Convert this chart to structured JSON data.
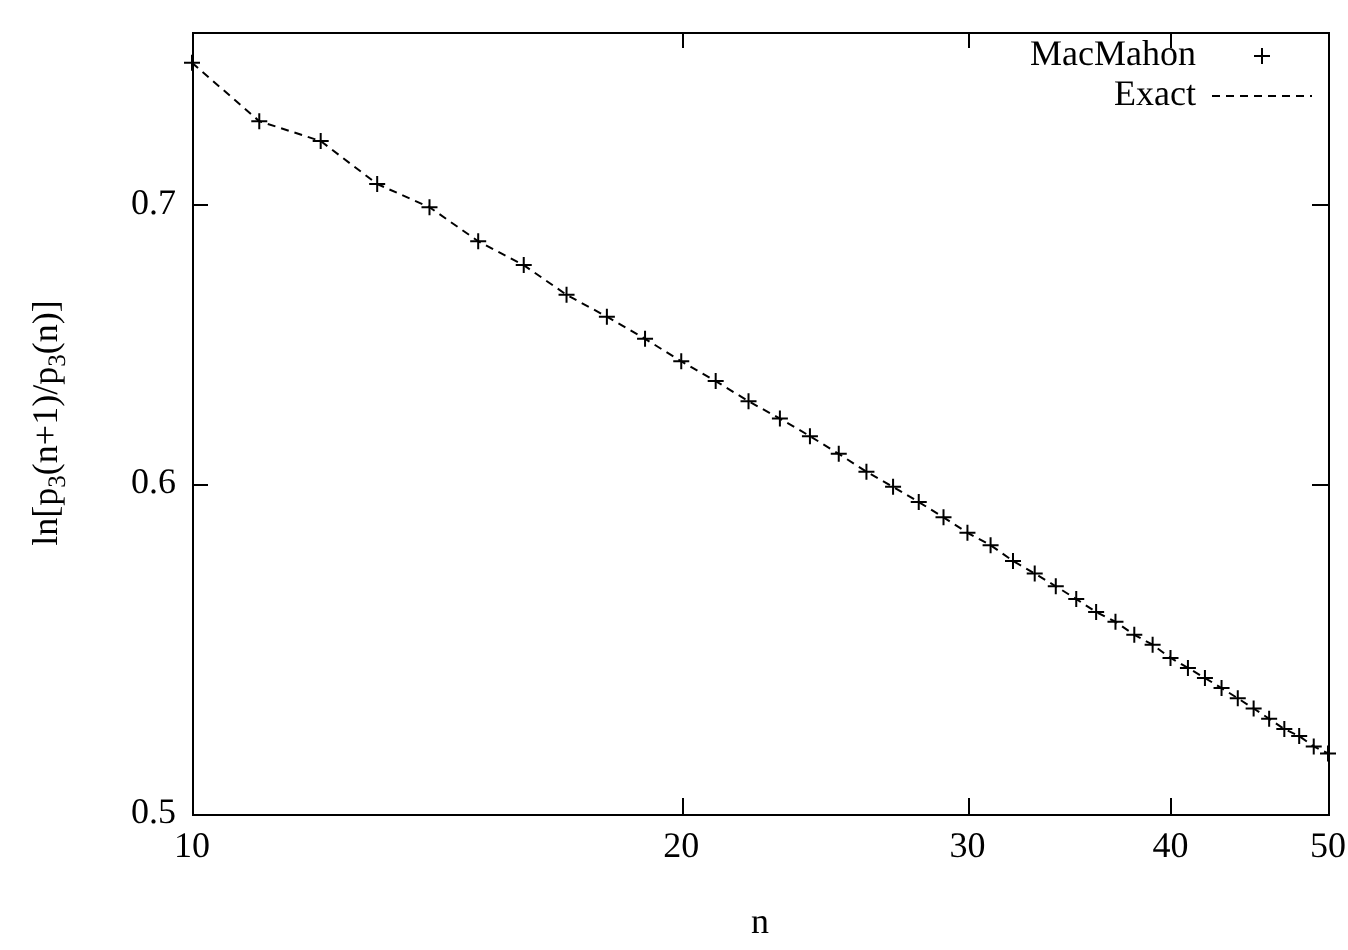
{
  "chart_data": {
    "type": "line",
    "xlabel": "n",
    "ylabel": "ln[p$_{3}$(n+1)/p$_{3}$(n)]",
    "log": "xy",
    "legend": "top right",
    "grid": false,
    "x": [
      10,
      11,
      12,
      13,
      14,
      15,
      16,
      17,
      18,
      19,
      20,
      21,
      22,
      23,
      24,
      25,
      26,
      27,
      28,
      29,
      30,
      31,
      32,
      33,
      34,
      35,
      36,
      37,
      38,
      39,
      40,
      41,
      42,
      43,
      44,
      45,
      46,
      47,
      48,
      49,
      50
    ],
    "xlim": [
      10,
      50
    ],
    "xticks": [
      10,
      20,
      30,
      40,
      50
    ],
    "ylim": [
      0.5,
      0.77
    ],
    "yticks": [
      0.5,
      0.6,
      0.7
    ],
    "series": [
      {
        "name": "MacMahon",
        "type": "scatter",
        "marker": "cross",
        "color": "#000000",
        "values": [
          0.757,
          0.733,
          0.725,
          0.708,
          0.699,
          0.686,
          0.677,
          0.666,
          0.658,
          0.65,
          0.642,
          0.635,
          0.628,
          0.622,
          0.616,
          0.61,
          0.604,
          0.599,
          0.594,
          0.589,
          0.584,
          0.58,
          0.575,
          0.571,
          0.567,
          0.563,
          0.559,
          0.556,
          0.552,
          0.549,
          0.545,
          0.542,
          0.539,
          0.536,
          0.533,
          0.53,
          0.527,
          0.524,
          0.522,
          0.519,
          0.517
        ]
      },
      {
        "name": "Exact",
        "line_style": "dashed",
        "color": "#000000",
        "values": [
          0.757,
          0.733,
          0.725,
          0.708,
          0.699,
          0.686,
          0.677,
          0.666,
          0.658,
          0.65,
          0.642,
          0.635,
          0.628,
          0.622,
          0.616,
          0.61,
          0.604,
          0.599,
          0.594,
          0.589,
          0.584,
          0.58,
          0.575,
          0.571,
          0.567,
          0.563,
          0.559,
          0.556,
          0.552,
          0.549,
          0.545,
          0.542,
          0.539,
          0.536,
          0.533,
          0.53,
          0.527,
          0.524,
          0.522,
          0.519,
          0.517
        ]
      }
    ]
  }
}
